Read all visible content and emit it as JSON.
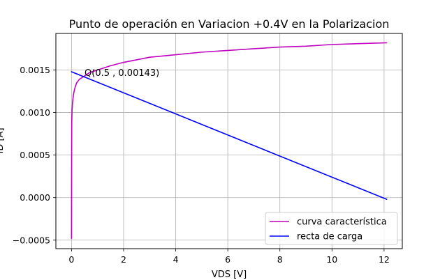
{
  "chart_data": {
    "type": "line",
    "title": "Punto de operación en Variacion +0.4V en la Polarizacion",
    "xlabel": "VDS [V]",
    "ylabel": "ID [A]",
    "xlim": [
      -0.6,
      12.7
    ],
    "ylim": [
      -0.0006,
      0.00193
    ],
    "grid": true,
    "xticks": [
      0,
      2,
      4,
      6,
      8,
      10,
      12
    ],
    "xtick_labels": [
      "0",
      "2",
      "4",
      "6",
      "8",
      "10",
      "12"
    ],
    "yticks": [
      -0.0005,
      0.0,
      0.0005,
      0.001,
      0.0015
    ],
    "ytick_labels": [
      "−0.0005",
      "0.0000",
      "0.0005",
      "0.0010",
      "0.0015"
    ],
    "legend_position": "lower-right",
    "series": [
      {
        "name": "curva característica",
        "color": "#bf00bf",
        "x": [
          0.0,
          0.002,
          0.005,
          0.01,
          0.02,
          0.04,
          0.07,
          0.1,
          0.15,
          0.2,
          0.3,
          0.4,
          0.5,
          0.7,
          1.0,
          1.5,
          2.0,
          3.0,
          4.0,
          5.0,
          6.0,
          7.0,
          8.0,
          9.0,
          10.0,
          11.0,
          12.1
        ],
        "y": [
          -0.00048,
          -0.0001,
          0.0004,
          0.00088,
          0.00102,
          0.00112,
          0.0012,
          0.00125,
          0.00131,
          0.00135,
          0.00139,
          0.00141,
          0.00143,
          0.00147,
          0.0015,
          0.00155,
          0.00159,
          0.00165,
          0.00168,
          0.00171,
          0.00173,
          0.00175,
          0.00177,
          0.00178,
          0.0018,
          0.00181,
          0.00182
        ]
      },
      {
        "name": "recta de carga",
        "color": "#0000ff",
        "x": [
          0.0,
          12.1
        ],
        "y": [
          0.00148,
          -2e-05
        ]
      }
    ],
    "annotations": [
      {
        "text": "Q(0.5 , 0.00143)",
        "x": 0.5,
        "y": 0.00143
      }
    ]
  }
}
